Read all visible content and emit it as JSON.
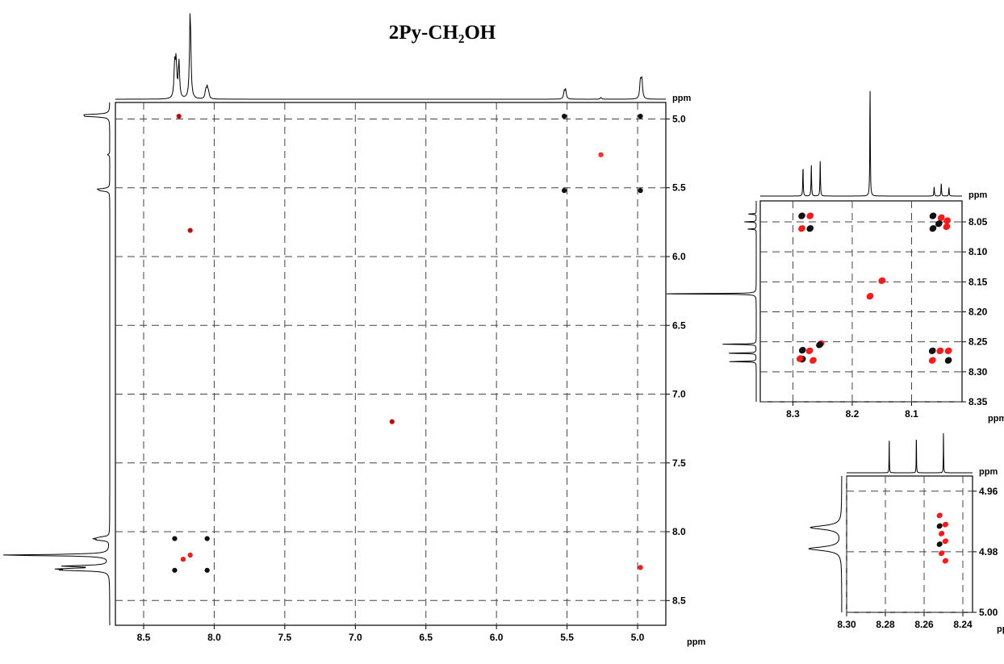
{
  "chart_data": [
    {
      "type": "scatter",
      "title": "2Py-CH₂OH",
      "x_unit": "ppm",
      "y_unit": "ppm",
      "xlim": [
        8.7,
        4.8
      ],
      "ylim": [
        4.88,
        8.68
      ],
      "x_ticks": [
        "8.5",
        "8.0",
        "7.5",
        "7.0",
        "6.5",
        "6.0",
        "5.5",
        "5.0"
      ],
      "y_ticks": [
        "5.0",
        "5.5",
        "6.0",
        "6.5",
        "7.0",
        "7.5",
        "8.0",
        "8.5"
      ],
      "grid": true,
      "projection_peaks": [
        {
          "shift": 8.28,
          "height": 0.36
        },
        {
          "shift": 8.27,
          "height": 0.39
        },
        {
          "shift": 8.25,
          "height": 0.41
        },
        {
          "shift": 8.17,
          "height": 1.0
        },
        {
          "shift": 8.06,
          "height": 0.09
        },
        {
          "shift": 8.05,
          "height": 0.12
        },
        {
          "shift": 8.04,
          "height": 0.07
        },
        {
          "shift": 5.52,
          "height": 0.08
        },
        {
          "shift": 5.51,
          "height": 0.1
        },
        {
          "shift": 5.26,
          "height": 0.02
        },
        {
          "shift": 4.98,
          "height": 0.2
        },
        {
          "shift": 4.97,
          "height": 0.21
        }
      ],
      "cross_peaks": [
        {
          "x": 8.25,
          "y": 4.98,
          "color": "#b01010"
        },
        {
          "x": 5.52,
          "y": 4.98,
          "color": "#111111"
        },
        {
          "x": 4.98,
          "y": 4.98,
          "color": "#111111"
        },
        {
          "x": 5.52,
          "y": 5.52,
          "color": "#111111"
        },
        {
          "x": 4.98,
          "y": 5.52,
          "color": "#111111"
        },
        {
          "x": 5.26,
          "y": 5.26,
          "color": "#ff3030"
        },
        {
          "x": 8.17,
          "y": 5.81,
          "color": "#b01010"
        },
        {
          "x": 6.74,
          "y": 7.2,
          "color": "#b01010"
        },
        {
          "x": 8.28,
          "y": 8.05,
          "color": "#111111"
        },
        {
          "x": 8.05,
          "y": 8.05,
          "color": "#111111"
        },
        {
          "x": 8.28,
          "y": 8.28,
          "color": "#111111"
        },
        {
          "x": 8.05,
          "y": 8.28,
          "color": "#111111"
        },
        {
          "x": 8.17,
          "y": 8.17,
          "color": "#ff1a1a"
        },
        {
          "x": 8.22,
          "y": 8.2,
          "color": "#ff1a1a"
        },
        {
          "x": 4.98,
          "y": 8.26,
          "color": "#ff1a1a"
        }
      ]
    },
    {
      "type": "scatter",
      "x_unit": "ppm",
      "y_unit": "ppm",
      "xlim": [
        8.355,
        8.015
      ],
      "ylim": [
        8.015,
        8.35
      ],
      "x_ticks": [
        "8.3",
        "8.2",
        "8.1"
      ],
      "y_ticks": [
        "8.05",
        "8.10",
        "8.15",
        "8.20",
        "8.25",
        "8.30",
        "8.35"
      ],
      "grid": true,
      "projection_peaks": [
        {
          "shift": 8.283,
          "height": 0.27
        },
        {
          "shift": 8.269,
          "height": 0.3
        },
        {
          "shift": 8.254,
          "height": 0.34
        },
        {
          "shift": 8.17,
          "height": 1.0
        },
        {
          "shift": 8.062,
          "height": 0.09
        },
        {
          "shift": 8.05,
          "height": 0.12
        },
        {
          "shift": 8.037,
          "height": 0.08
        }
      ],
      "cross_peaks": [
        {
          "x": 8.285,
          "y": 8.04,
          "color": "#111111"
        },
        {
          "x": 8.271,
          "y": 8.04,
          "color": "#ff1a1a"
        },
        {
          "x": 8.285,
          "y": 8.061,
          "color": "#ff1a1a"
        },
        {
          "x": 8.271,
          "y": 8.061,
          "color": "#111111"
        },
        {
          "x": 8.064,
          "y": 8.04,
          "color": "#111111"
        },
        {
          "x": 8.05,
          "y": 8.043,
          "color": "#ff1a1a"
        },
        {
          "x": 8.04,
          "y": 8.048,
          "color": "#ff1a1a"
        },
        {
          "x": 8.054,
          "y": 8.053,
          "color": "#111111"
        },
        {
          "x": 8.041,
          "y": 8.058,
          "color": "#ff1a1a"
        },
        {
          "x": 8.064,
          "y": 8.061,
          "color": "#111111"
        },
        {
          "x": 8.15,
          "y": 8.148,
          "color": "#ff1a1a"
        },
        {
          "x": 8.17,
          "y": 8.174,
          "color": "#ff1a1a"
        },
        {
          "x": 8.253,
          "y": 8.253,
          "color": "#ff1a1a"
        },
        {
          "x": 8.255,
          "y": 8.255,
          "color": "#111111"
        },
        {
          "x": 8.272,
          "y": 8.265,
          "color": "#ff1a1a"
        },
        {
          "x": 8.284,
          "y": 8.264,
          "color": "#111111"
        },
        {
          "x": 8.284,
          "y": 8.279,
          "color": "#111111"
        },
        {
          "x": 8.288,
          "y": 8.278,
          "color": "#ff1a1a"
        },
        {
          "x": 8.266,
          "y": 8.281,
          "color": "#ff1a1a"
        },
        {
          "x": 8.065,
          "y": 8.265,
          "color": "#111111"
        },
        {
          "x": 8.052,
          "y": 8.265,
          "color": "#ff1a1a"
        },
        {
          "x": 8.038,
          "y": 8.265,
          "color": "#ff1a1a"
        },
        {
          "x": 8.065,
          "y": 8.281,
          "color": "#ff1a1a"
        },
        {
          "x": 8.038,
          "y": 8.281,
          "color": "#111111"
        }
      ]
    },
    {
      "type": "scatter",
      "x_unit": "ppm",
      "y_unit": "ppm",
      "xlim": [
        8.3,
        8.235
      ],
      "ylim": [
        4.955,
        5.0
      ],
      "x_ticks": [
        "8.30",
        "8.28",
        "8.26",
        "8.24"
      ],
      "y_ticks": [
        "4.96",
        "4.98",
        "5.00"
      ],
      "grid": true,
      "projection_peaks": [
        {
          "shift": 8.278,
          "height": 0.76
        },
        {
          "shift": 8.264,
          "height": 0.81
        },
        {
          "shift": 8.25,
          "height": 0.91
        }
      ],
      "y_projection_peaks": [
        {
          "shift": 4.972,
          "height": 0.63
        },
        {
          "shift": 4.979,
          "height": 0.66
        }
      ],
      "cross_peaks": [
        {
          "x": 8.252,
          "y": 4.968,
          "color": "#ff1a1a"
        },
        {
          "x": 8.249,
          "y": 4.971,
          "color": "#ff1a1a"
        },
        {
          "x": 8.252,
          "y": 4.9715,
          "color": "#111111"
        },
        {
          "x": 8.251,
          "y": 4.974,
          "color": "#ff1a1a"
        },
        {
          "x": 8.249,
          "y": 4.9765,
          "color": "#ff1a1a"
        },
        {
          "x": 8.252,
          "y": 4.9775,
          "color": "#111111"
        },
        {
          "x": 8.251,
          "y": 4.9805,
          "color": "#ff1a1a"
        },
        {
          "x": 8.249,
          "y": 4.983,
          "color": "#ff1a1a"
        }
      ]
    }
  ]
}
